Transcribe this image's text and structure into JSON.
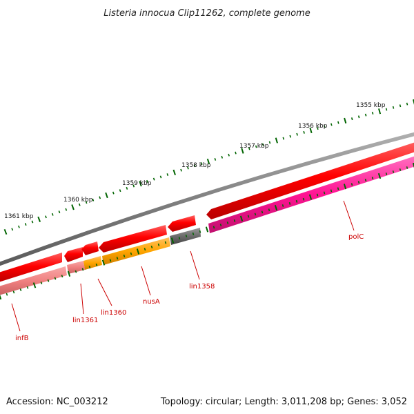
{
  "title": "Listeria innocua Clip11262, complete genome",
  "footer": {
    "accession": "Accession: NC_003212",
    "topology": "Topology: circular; Length: 3,011,208 bp; Genes: 3,052"
  },
  "scale_labels": [
    "1355 kbp",
    "1356 kbp",
    "1357 kbp",
    "1358 kbp",
    "1359 kbp",
    "1360 kbp",
    "1361 kbp"
  ],
  "genes": [
    {
      "name": "infB",
      "label": "infB"
    },
    {
      "name": "lin1361",
      "label": "lin1361"
    },
    {
      "name": "lin1360",
      "label": "lin1360"
    },
    {
      "name": "nusA",
      "label": "nusA"
    },
    {
      "name": "lin1358",
      "label": "lin1358"
    },
    {
      "name": "polC",
      "label": "polC"
    }
  ],
  "colors": {
    "backbone": "#808080",
    "cds_red": "#ff0000",
    "cds_light_red": "#f08080",
    "cds_orange": "#ffa500",
    "cds_gray": "#6b6b6b",
    "cds_magenta": "#ff1493",
    "label_red": "#cc0000",
    "tick_green": "#006400"
  }
}
